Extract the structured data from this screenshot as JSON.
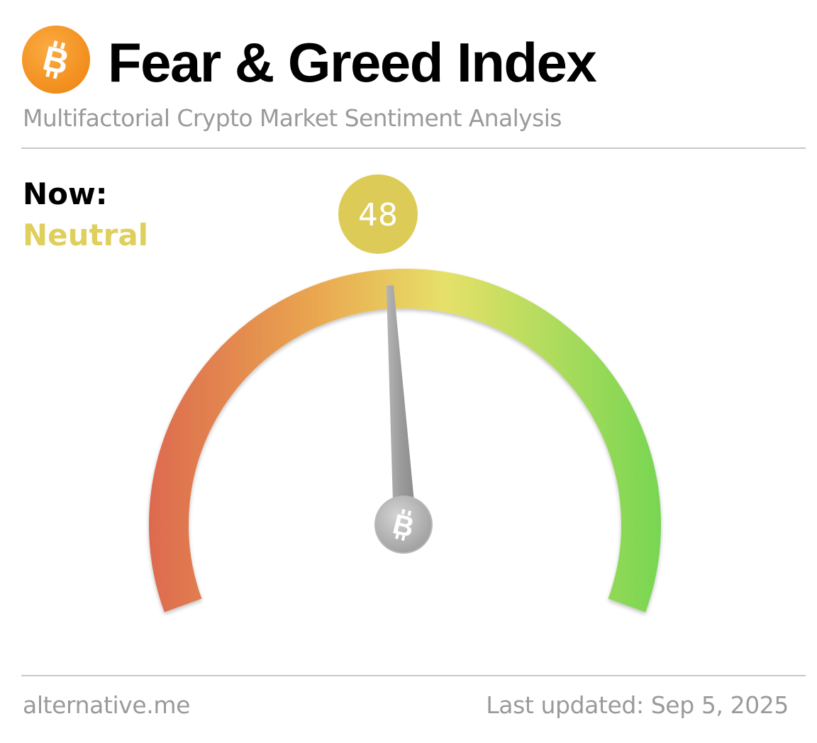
{
  "header": {
    "logo_icon": "bitcoin-icon",
    "logo_color": "#f7931a",
    "title": "Fear & Greed Index",
    "subtitle": "Multifactorial Crypto Market Sentiment Analysis"
  },
  "status": {
    "now_label": "Now:",
    "classification": "Neutral",
    "classification_color": "#dfcf5c"
  },
  "gauge": {
    "value": 48,
    "value_text": "48",
    "min": 0,
    "max": 100,
    "badge_color": "#ddcb58",
    "gradient_colors": [
      "#dd6a4f",
      "#eaa750",
      "#e6e168",
      "#78d652"
    ],
    "needle_color": "#9a9a9a",
    "hub_icon": "bitcoin-icon"
  },
  "footer": {
    "source": "alternative.me",
    "last_updated": "Last updated: Sep 5, 2025"
  }
}
